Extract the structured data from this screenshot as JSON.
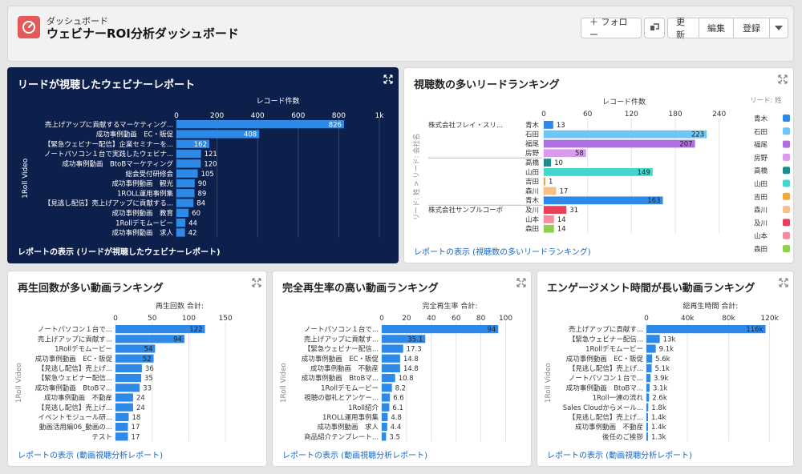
{
  "header": {
    "subtitle": "ダッシュボード",
    "title": "ウェビナーROI分析ダッシュボード",
    "follow_label": "＋ フォロー",
    "refresh_label": "更新",
    "edit_label": "編集",
    "subscribe_label": "登録"
  },
  "colors": {
    "bar_blue": "#2d8ae8",
    "dark_bg": "#0d1f4b",
    "link": "#1a66c2"
  },
  "panels": {
    "webinar_report": {
      "title": "リードが視聴したウェビナーレポート",
      "footer": "レポートの表示 (リードが視聴したウェビナーレポート)",
      "axis_title": "レコード件数",
      "y_axis_label": "1Roll Video",
      "ticks": [
        "0",
        "200",
        "400",
        "600",
        "800",
        "1k"
      ]
    },
    "lead_ranking": {
      "title": "視聴数の多いリードランキング",
      "footer": "レポートの表示 (視聴数の多いリードランキング)",
      "axis_title": "レコード件数",
      "y_axis_label": "リード: 姓 > リード: 会社名",
      "legend_title": "リード: 姓",
      "ticks": [
        "0",
        "60",
        "120",
        "180",
        "240"
      ],
      "companies": [
        "株式会社フレイ・スリ...",
        "株式会社サンプルコーポ"
      ]
    },
    "play_count": {
      "title": "再生回数が多い動画ランキング",
      "footer": "レポートの表示 (動画視聴分析レポート)",
      "axis_title": "再生回数 合計:",
      "y_axis_label": "1Roll Video",
      "ticks": [
        "0",
        "50",
        "100",
        "150"
      ]
    },
    "completion": {
      "title": "完全再生率の高い動画ランキング",
      "footer": "レポートの表示 (動画視聴分析レポート)",
      "axis_title": "完全再生率 合計:",
      "y_axis_label": "1Roll Video",
      "ticks": [
        "0",
        "20",
        "40",
        "60",
        "80",
        "100"
      ]
    },
    "engagement": {
      "title": "エンゲージメント時間が長い動画ランキング",
      "footer": "レポートの表示 (動画視聴分析レポート)",
      "axis_title": "総再生時間 合計:",
      "y_axis_label": "1Roll Video",
      "ticks": [
        "0",
        "40k",
        "80k",
        "120k"
      ]
    }
  },
  "chart_data": [
    {
      "type": "bar",
      "title": "リードが視聴したウェビナーレポート",
      "xlabel": "レコード件数",
      "ylabel": "1Roll Video",
      "xlim": [
        0,
        1000
      ],
      "categories": [
        "売上げアップに貢献するマーケティング...",
        "成功事例動画　EC・販促",
        "【緊急ウェビナー配信】企業セミナーを...",
        "ノートパソコン１台で実践したウェビナ...",
        "成功事例動画　BtoBマーケティング",
        "総会受付研修会",
        "成功事例動画　観光",
        "1ROLL運用事例集",
        "【見逃し配信】売上げアップに貢献する...",
        "成功事例動画　教育",
        "1Rollデモムービー",
        "成功事例動画　求人"
      ],
      "values": [
        826,
        408,
        162,
        121,
        120,
        105,
        90,
        89,
        84,
        60,
        44,
        42
      ],
      "value_labels": [
        "826",
        "408",
        "162",
        "121",
        "120",
        "105",
        "90",
        "89",
        "84",
        "60",
        "44",
        "42"
      ]
    },
    {
      "type": "bar",
      "title": "視聴数の多いリードランキング",
      "xlabel": "レコード件数",
      "ylabel": "リード: 姓 > リード: 会社名",
      "xlim": [
        0,
        270
      ],
      "groups": [
        "株式会社フレイ・スリ...",
        "株式会社フレイ・スリ...",
        "株式会社フレイ・スリ...",
        "株式会社フレイ・スリ...",
        "",
        "",
        "",
        "",
        "",
        "株式会社サンプルコーポ",
        "株式会社サンプルコーポ",
        "株式会社サンプルコーポ"
      ],
      "categories": [
        "青木",
        "石田",
        "福尾",
        "房野",
        "高橋",
        "山田",
        "吉田",
        "森川",
        "青木",
        "及川",
        "山本",
        "森田"
      ],
      "values": [
        13,
        223,
        207,
        58,
        10,
        149,
        1,
        17,
        163,
        31,
        14,
        14
      ],
      "value_labels": [
        "13",
        "223",
        "207",
        "58",
        "10",
        "149",
        "1",
        "17",
        "163",
        "31",
        "14",
        "14"
      ],
      "bar_colors": [
        "#2d8ae8",
        "#6ec6f5",
        "#b06fe0",
        "#d99af0",
        "#1f8a8f",
        "#42d6cd",
        "#f2a93b",
        "#f7c08a",
        "#2d8ae8",
        "#e8405a",
        "#f58ca0",
        "#8fd14f"
      ],
      "legend": [
        {
          "name": "青木",
          "color": "#2d8ae8"
        },
        {
          "name": "石田",
          "color": "#6ec6f5"
        },
        {
          "name": "福尾",
          "color": "#b06fe0"
        },
        {
          "name": "房野",
          "color": "#d99af0"
        },
        {
          "name": "高橋",
          "color": "#1f8a8f"
        },
        {
          "name": "山田",
          "color": "#42d6cd"
        },
        {
          "name": "吉田",
          "color": "#f2a93b"
        },
        {
          "name": "森川",
          "color": "#f7c08a"
        },
        {
          "name": "及川",
          "color": "#e8405a"
        },
        {
          "name": "山本",
          "color": "#f58ca0"
        },
        {
          "name": "森田",
          "color": "#8fd14f"
        }
      ]
    },
    {
      "type": "bar",
      "title": "再生回数が多い動画ランキング",
      "xlabel": "再生回数 合計:",
      "ylabel": "1Roll Video",
      "xlim": [
        0,
        175
      ],
      "categories": [
        "ノートパソコン１台で...",
        "売上げアップに貢献す...",
        "1Rollデモムービー",
        "成功事例動画　EC・販促",
        "【見逃し配信】売上げ...",
        "【緊急ウェビナー配信...",
        "成功事例動画　BtoBマ...",
        "成功事例動画　不動産",
        "【見逃し配信】売上げ...",
        "イベントモジュール研...",
        "動画活用編06_動画の...",
        "テスト"
      ],
      "values": [
        122,
        94,
        54,
        52,
        36,
        35,
        33,
        24,
        24,
        18,
        17,
        17
      ],
      "value_labels": [
        "122",
        "94",
        "54",
        "52",
        "36",
        "35",
        "33",
        "24",
        "24",
        "18",
        "17",
        "17"
      ]
    },
    {
      "type": "bar",
      "title": "完全再生率の高い動画ランキング",
      "xlabel": "完全再生率 合計:",
      "ylabel": "1Roll Video",
      "xlim": [
        0,
        110
      ],
      "categories": [
        "ノートパソコン１台で...",
        "売上げアップに貢献す...",
        "【緊急ウェビナー配信...",
        "成功事例動画　EC・販促",
        "成功事例動画　不動産",
        "成功事例動画　BtoBマ...",
        "1Rollデモムービー",
        "視聴の御礼とアンケー...",
        "1Roll紹介",
        "1ROLL運用事例集",
        "成功事例動画　求人",
        "商品紹介テンプレート..."
      ],
      "values": [
        94,
        35.1,
        17.3,
        14.8,
        14.8,
        10.8,
        8.2,
        6.6,
        6.1,
        4.8,
        4.4,
        3.5
      ],
      "value_labels": [
        "94",
        "35.1",
        "17.3",
        "14.8",
        "14.8",
        "10.8",
        "8.2",
        "6.6",
        "6.1",
        "4.8",
        "4.4",
        "3.5"
      ]
    },
    {
      "type": "bar",
      "title": "エンゲージメント時間が長い動画ランキング",
      "xlabel": "総再生時間 合計:",
      "ylabel": "1Roll Video",
      "xlim": [
        0,
        125000
      ],
      "categories": [
        "売上げアップに貢献す...",
        "【緊急ウェビナー配信...",
        "1Rollデモムービー",
        "成功事例動画　EC・販促",
        "【見逃し配信】売上げ...",
        "ノートパソコン１台で...",
        "成功事例動画　BtoBマ...",
        "1Roll一連の流れ",
        "Sales Cloudからメール...",
        "【見逃し配信】売上げ...",
        "成功事例動画　不動産",
        "後任のご挨拶"
      ],
      "values": [
        116000,
        13000,
        9100,
        5600,
        5100,
        3900,
        3100,
        2600,
        1800,
        1400,
        1400,
        1300
      ],
      "value_labels": [
        "116k",
        "13k",
        "9.1k",
        "5.6k",
        "5.1k",
        "3.9k",
        "3.1k",
        "2.6k",
        "1.8k",
        "1.4k",
        "1.4k",
        "1.3k"
      ]
    }
  ]
}
